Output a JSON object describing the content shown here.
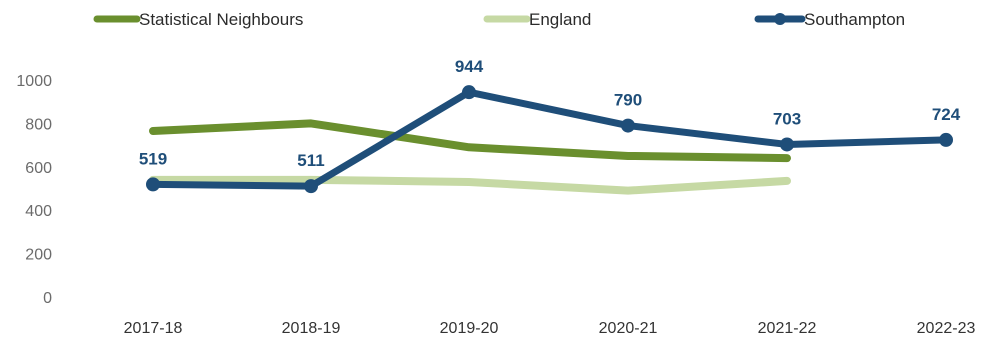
{
  "chart_data": {
    "type": "line",
    "title": "",
    "xlabel": "",
    "ylabel": "",
    "categories": [
      "2017-18",
      "2018-19",
      "2019-20",
      "2020-21",
      "2021-22",
      "2022-23"
    ],
    "ylim": [
      0,
      1000
    ],
    "yticks": [
      "0",
      "200",
      "400",
      "600",
      "800",
      "1000"
    ],
    "grid": false,
    "legend_position": "top",
    "series": [
      {
        "name": "Statistical Neighbours",
        "color": "#6a8f2e",
        "values": [
          765,
          800,
          690,
          650,
          640,
          null
        ],
        "labels": null
      },
      {
        "name": "England",
        "color": "#c6d9a4",
        "values": [
          540,
          540,
          530,
          490,
          535,
          null
        ],
        "labels": null
      },
      {
        "name": "Southampton",
        "color": "#1f4e79",
        "values": [
          519,
          511,
          944,
          790,
          703,
          724
        ],
        "labels": [
          "519",
          "511",
          "944",
          "790",
          "703",
          "724"
        ]
      }
    ]
  }
}
